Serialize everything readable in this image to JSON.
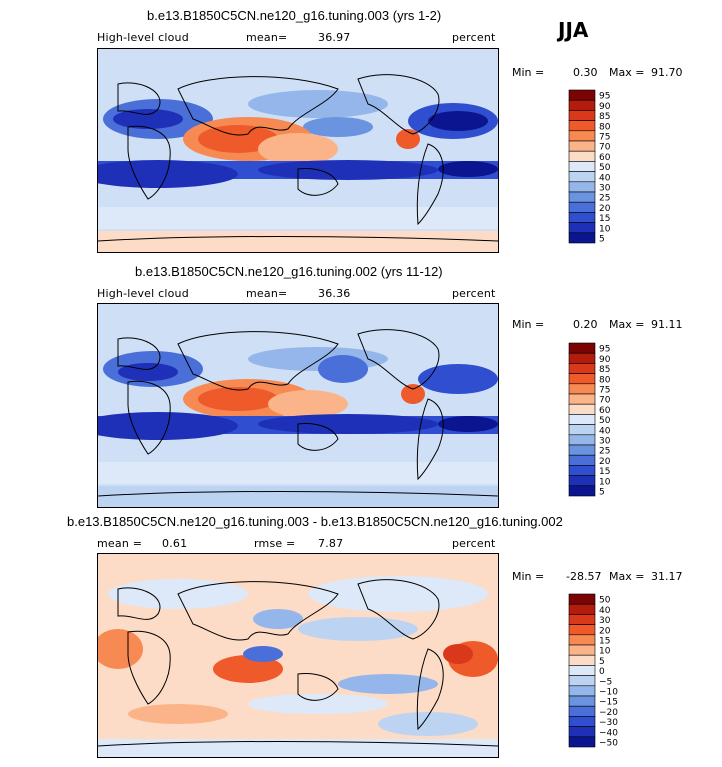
{
  "season": "JJA",
  "palette": {
    "p95": "#7a0403",
    "p90": "#b31b0c",
    "p85": "#d9381a",
    "p80": "#ef5a2a",
    "p75": "#f78a52",
    "p70": "#fbb48a",
    "p60": "#fcdcc6",
    "p50": "#dde9f8",
    "p40": "#bcd4f2",
    "p30": "#94b6ea",
    "p25": "#6b94e0",
    "p20": "#4a6fd8",
    "p15": "#2f4fd0",
    "p10": "#1f30b8",
    "p5": "#0c1590"
  },
  "chart_data": [
    {
      "type": "heatmap",
      "title": "b.e13.B1850C5CN.ne120_g16.tuning.003 (yrs 1-2)",
      "variable": "High-level cloud",
      "mean_label": "mean=",
      "mean": "36.97",
      "units": "percent",
      "min_label": "Min =",
      "min": "0.30",
      "max_label": "Max =",
      "max": "91.70",
      "levels": [
        "95",
        "90",
        "85",
        "80",
        "75",
        "70",
        "60",
        "50",
        "40",
        "30",
        "25",
        "20",
        "15",
        "10",
        "5"
      ]
    },
    {
      "type": "heatmap",
      "title": "b.e13.B1850C5CN.ne120_g16.tuning.002 (yrs 11-12)",
      "variable": "High-level cloud",
      "mean_label": "mean=",
      "mean": "36.36",
      "units": "percent",
      "min_label": "Min =",
      "min": "0.20",
      "max_label": "Max =",
      "max": "91.11",
      "levels": [
        "95",
        "90",
        "85",
        "80",
        "75",
        "70",
        "60",
        "50",
        "40",
        "30",
        "25",
        "20",
        "15",
        "10",
        "5"
      ]
    },
    {
      "type": "heatmap",
      "title": "b.e13.B1850C5CN.ne120_g16.tuning.003 - b.e13.B1850C5CN.ne120_g16.tuning.002",
      "mean_label": "mean =",
      "mean": "0.61",
      "rmse_label": "rmse =",
      "rmse": "7.87",
      "units": "percent",
      "min_label": "Min =",
      "min": "-28.57",
      "max_label": "Max =",
      "max": "31.17",
      "levels": [
        "50",
        "40",
        "30",
        "20",
        "15",
        "10",
        "5",
        "0",
        "−5",
        "−10",
        "−15",
        "−20",
        "−30",
        "−40",
        "−50"
      ]
    }
  ]
}
